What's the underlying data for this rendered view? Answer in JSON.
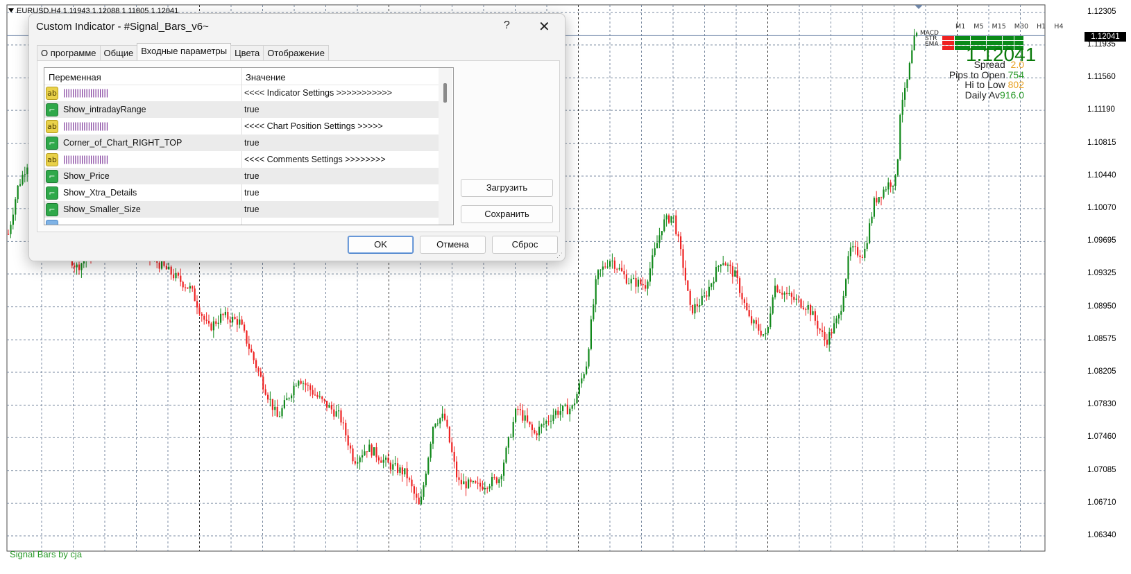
{
  "chart": {
    "header": "EURUSD,H4  1.11943 1.12088 1.11805 1.12041",
    "price_axis": [
      "1.12305",
      "1.11935",
      "1.11560",
      "1.11190",
      "1.10815",
      "1.10440",
      "1.10070",
      "1.09695",
      "1.09325",
      "1.08950",
      "1.08575",
      "1.08205",
      "1.07830",
      "1.07460",
      "1.07085",
      "1.06710",
      "1.06340"
    ],
    "bid_label": "1.12041",
    "timeframes": [
      "M1",
      "M5",
      "M15",
      "M30",
      "H1",
      "H4"
    ],
    "signal_rows": [
      "MACD",
      "STR",
      "EMA"
    ],
    "big_price": "1.12041",
    "spread_label": "Spread",
    "spread_value": "2.0",
    "pips_open_label": "Pips to Open",
    "pips_open_value": "754",
    "hi_low_label": "Hi to Low",
    "hi_low_value": "802",
    "daily_av_label": "Daily Av",
    "daily_av_value": "916.0",
    "credit": "Signal Bars by cja",
    "colors": {
      "bull": "#11881b",
      "bear": "#ee2222",
      "grid": "#7a8aa0",
      "bid_line": "#6f86a8"
    }
  },
  "dialog": {
    "title": "Custom Indicator - #Signal_Bars_v6~",
    "help": "?",
    "close": "✕",
    "tabs": [
      "О программе",
      "Общие",
      "Входные параметры",
      "Цвета",
      "Отображение"
    ],
    "active_tab": 2,
    "columns": {
      "variable": "Переменная",
      "value": "Значение"
    },
    "rows": [
      {
        "icon": "ab",
        "name": "||||||||||||||||||||",
        "value": "<<<< Indicator Settings >>>>>>>>>>>"
      },
      {
        "icon": "bool",
        "name": "Show_intradayRange",
        "value": "true"
      },
      {
        "icon": "ab",
        "name": "||||||||||||||||||||",
        "value": "<<<< Chart Position Settings >>>>>"
      },
      {
        "icon": "bool",
        "name": "Corner_of_Chart_RIGHT_TOP",
        "value": "true"
      },
      {
        "icon": "ab",
        "name": "||||||||||||||||||||",
        "value": " <<<< Comments Settings >>>>>>>>"
      },
      {
        "icon": "bool",
        "name": "Show_Price",
        "value": "true"
      },
      {
        "icon": "bool",
        "name": "Show_Xtra_Details",
        "value": "true"
      },
      {
        "icon": "bool",
        "name": "Show_Smaller_Size",
        "value": "true"
      }
    ],
    "load_button": "Загрузить",
    "save_button": "Сохранить",
    "ok_button": "OK",
    "cancel_button": "Отмена",
    "reset_button": "Сброс"
  }
}
